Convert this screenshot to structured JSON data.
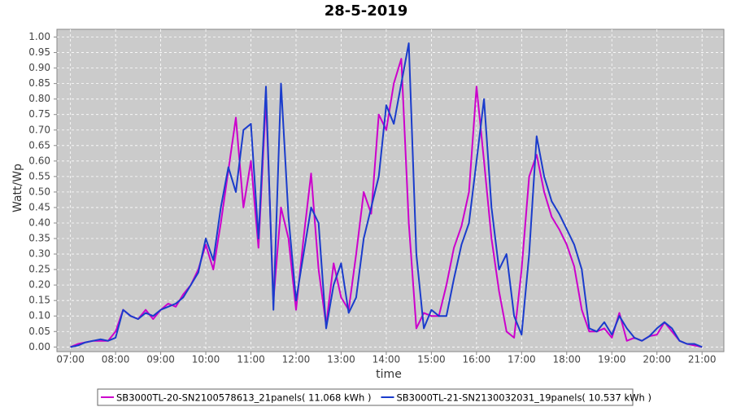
{
  "chart_data": {
    "type": "line",
    "title": "28-5-2019",
    "x_label": "time",
    "y_label": "Watt/Wp",
    "x": [
      "07:00",
      "07:10",
      "07:20",
      "07:30",
      "07:40",
      "07:50",
      "08:00",
      "08:10",
      "08:20",
      "08:30",
      "08:40",
      "08:50",
      "09:00",
      "09:10",
      "09:20",
      "09:30",
      "09:40",
      "09:50",
      "10:00",
      "10:10",
      "10:20",
      "10:30",
      "10:40",
      "10:50",
      "11:00",
      "11:10",
      "11:20",
      "11:30",
      "11:40",
      "11:50",
      "12:00",
      "12:10",
      "12:20",
      "12:30",
      "12:40",
      "12:50",
      "13:00",
      "13:10",
      "13:20",
      "13:30",
      "13:40",
      "13:50",
      "14:00",
      "14:10",
      "14:20",
      "14:30",
      "14:40",
      "14:50",
      "15:00",
      "15:10",
      "15:20",
      "15:30",
      "15:40",
      "15:50",
      "16:00",
      "16:10",
      "16:20",
      "16:30",
      "16:40",
      "16:50",
      "17:00",
      "17:10",
      "17:20",
      "17:30",
      "17:40",
      "17:50",
      "18:00",
      "18:10",
      "18:20",
      "18:30",
      "18:40",
      "18:50",
      "19:00",
      "19:10",
      "19:20",
      "19:30",
      "19:40",
      "19:50",
      "20:00",
      "20:10",
      "20:20",
      "20:30",
      "20:40",
      "20:50",
      "21:00"
    ],
    "series": [
      {
        "name": "SB3000TL-20-SN2100578613_21panels( 11.068 kWh )",
        "color": "#cc00cc",
        "values": [
          0.0,
          0.01,
          0.015,
          0.02,
          0.02,
          0.02,
          0.05,
          0.12,
          0.1,
          0.09,
          0.12,
          0.09,
          0.12,
          0.14,
          0.13,
          0.17,
          0.2,
          0.25,
          0.33,
          0.25,
          0.4,
          0.57,
          0.74,
          0.45,
          0.6,
          0.32,
          0.8,
          0.15,
          0.45,
          0.35,
          0.12,
          0.35,
          0.56,
          0.25,
          0.07,
          0.27,
          0.16,
          0.12,
          0.3,
          0.5,
          0.43,
          0.75,
          0.7,
          0.85,
          0.93,
          0.4,
          0.06,
          0.11,
          0.1,
          0.1,
          0.2,
          0.32,
          0.39,
          0.5,
          0.84,
          0.6,
          0.35,
          0.18,
          0.05,
          0.03,
          0.25,
          0.55,
          0.62,
          0.5,
          0.42,
          0.38,
          0.33,
          0.26,
          0.12,
          0.05,
          0.05,
          0.06,
          0.03,
          0.11,
          0.02,
          0.03,
          0.02,
          0.035,
          0.04,
          0.08,
          0.05,
          0.02,
          0.01,
          0.005,
          0.0
        ]
      },
      {
        "name": "SB3000TL-21-SN2130032031_19panels( 10.537 kWh )",
        "color": "#1a3ccc",
        "values": [
          0.0,
          0.005,
          0.015,
          0.02,
          0.025,
          0.02,
          0.03,
          0.12,
          0.1,
          0.09,
          0.11,
          0.1,
          0.12,
          0.13,
          0.14,
          0.16,
          0.2,
          0.24,
          0.35,
          0.28,
          0.45,
          0.58,
          0.5,
          0.7,
          0.72,
          0.35,
          0.84,
          0.12,
          0.85,
          0.42,
          0.15,
          0.3,
          0.45,
          0.4,
          0.06,
          0.2,
          0.27,
          0.11,
          0.16,
          0.35,
          0.45,
          0.55,
          0.78,
          0.72,
          0.85,
          0.98,
          0.3,
          0.06,
          0.12,
          0.1,
          0.1,
          0.22,
          0.33,
          0.4,
          0.6,
          0.8,
          0.45,
          0.25,
          0.3,
          0.1,
          0.04,
          0.3,
          0.68,
          0.55,
          0.47,
          0.43,
          0.38,
          0.33,
          0.25,
          0.06,
          0.05,
          0.08,
          0.04,
          0.1,
          0.06,
          0.03,
          0.02,
          0.035,
          0.06,
          0.08,
          0.06,
          0.02,
          0.01,
          0.01,
          0.0
        ]
      }
    ],
    "xlim": [
      "06:42",
      "21:29"
    ],
    "xticks": [
      "07:00",
      "08:00",
      "09:00",
      "10:00",
      "11:00",
      "12:00",
      "13:00",
      "14:00",
      "15:00",
      "16:00",
      "17:00",
      "18:00",
      "19:00",
      "20:00",
      "21:00"
    ],
    "ylim": [
      -0.015,
      1.025
    ],
    "yticks": [
      {
        "value": 0,
        "label": "0.00"
      },
      {
        "value": 0.05,
        "label": "0.05"
      },
      {
        "value": 0.1,
        "label": "0.10"
      },
      {
        "value": 0.15,
        "label": "0.15"
      },
      {
        "value": 0.2,
        "label": "0.20"
      },
      {
        "value": 0.25,
        "label": "0.25"
      },
      {
        "value": 0.3,
        "label": "0.30"
      },
      {
        "value": 0.35,
        "label": "0.35"
      },
      {
        "value": 0.4,
        "label": "0.40"
      },
      {
        "value": 0.45,
        "label": "0.45"
      },
      {
        "value": 0.5,
        "label": "0.50"
      },
      {
        "value": 0.55,
        "label": "0.55"
      },
      {
        "value": 0.6,
        "label": "0.60"
      },
      {
        "value": 0.65,
        "label": "0.65"
      },
      {
        "value": 0.7,
        "label": "0.70"
      },
      {
        "value": 0.75,
        "label": "0.75"
      },
      {
        "value": 0.8,
        "label": "0.80"
      },
      {
        "value": 0.85,
        "label": "0.85"
      },
      {
        "value": 0.9,
        "label": "0.90"
      },
      {
        "value": 0.95,
        "label": "0.95"
      },
      {
        "value": 1,
        "label": "1.00"
      }
    ],
    "grid": true,
    "legend": "bottom"
  }
}
